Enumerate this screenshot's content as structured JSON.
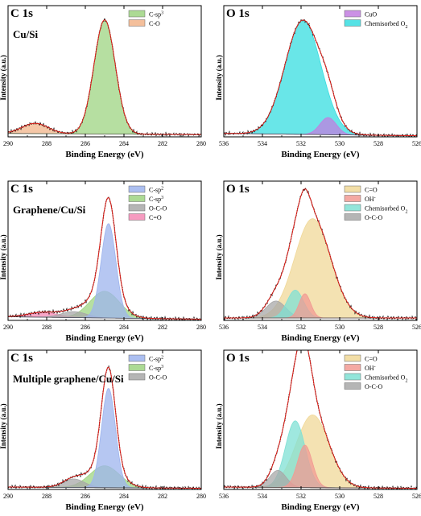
{
  "chart_data": [
    {
      "type": "area",
      "title": "C 1s",
      "subtitle": "Cu/Si",
      "xlabel": "Binding Energy (eV)",
      "ylabel": "Intensity (a.u.)",
      "xlim": [
        290,
        280
      ],
      "ylim": [
        0,
        1.15
      ],
      "xticks": [
        290,
        288,
        286,
        284,
        282,
        280
      ],
      "xtick_labels": [
        "290",
        "288",
        "286",
        "284",
        "282",
        "280"
      ],
      "legend_position": "top-right",
      "legend_labels": [
        "C-sp",
        "C-O"
      ],
      "legend_sups": [
        "3",
        ""
      ],
      "baseline": [
        [
          290,
          0.03
        ],
        [
          280,
          0.02
        ]
      ],
      "peaks": [
        {
          "name": "C-sp3",
          "center": 285.0,
          "height": 1.0,
          "fwhm": 1.3,
          "color": "#9ed481"
        },
        {
          "name": "C-O",
          "center": 288.6,
          "height": 0.09,
          "fwhm": 1.6,
          "color": "#f2b48a"
        }
      ]
    },
    {
      "type": "area",
      "title": "O 1s",
      "subtitle": "",
      "xlabel": "Binding Energy (eV)",
      "ylabel": "Intensity (a.u.)",
      "xlim": [
        536,
        526
      ],
      "ylim": [
        0,
        1.15
      ],
      "xticks": [
        536,
        534,
        532,
        530,
        528,
        526
      ],
      "xtick_labels": [
        "536",
        "534",
        "532",
        "530",
        "528",
        "526"
      ],
      "legend_position": "top-right",
      "legend_labels": [
        "CuO",
        "Chemisorbed O"
      ],
      "legend_sups": [
        "",
        ""
      ],
      "legend_subs": [
        "",
        "2"
      ],
      "baseline": [
        [
          536,
          0.03
        ],
        [
          526,
          0.01
        ]
      ],
      "peaks": [
        {
          "name": "CuO",
          "center": 530.6,
          "height": 0.15,
          "fwhm": 1.0,
          "color": "#c27de0"
        },
        {
          "name": "Chemisorbed O2",
          "center": 531.9,
          "height": 1.0,
          "fwhm": 2.2,
          "color": "#37dde0"
        }
      ]
    },
    {
      "type": "area",
      "title": "C 1s",
      "subtitle": "Graphene/Cu/Si",
      "xlabel": "Binding Energy (eV)",
      "ylabel": "Intensity (a.u.)",
      "xlim": [
        290,
        280
      ],
      "ylim": [
        0,
        1.15
      ],
      "xticks": [
        290,
        288,
        286,
        284,
        282,
        280
      ],
      "xtick_labels": [
        "290",
        "288",
        "286",
        "284",
        "282",
        "280"
      ],
      "legend_position": "top-right",
      "legend_labels": [
        "C-sp",
        "C-sp",
        "O-C-O",
        "C=O"
      ],
      "legend_sups": [
        "2",
        "3",
        "",
        ""
      ],
      "baseline": [
        [
          290,
          0.03
        ],
        [
          280,
          0.01
        ]
      ],
      "peaks": [
        {
          "name": "C-sp2",
          "center": 284.8,
          "height": 0.78,
          "fwhm": 0.9,
          "color": "#9db4ee"
        },
        {
          "name": "C-sp3",
          "center": 285.0,
          "height": 0.22,
          "fwhm": 1.8,
          "color": "#9ed481"
        },
        {
          "name": "O-C-O",
          "center": 286.6,
          "height": 0.05,
          "fwhm": 1.5,
          "color": "#a8a8a8"
        },
        {
          "name": "C=O",
          "center": 288.2,
          "height": 0.04,
          "fwhm": 1.8,
          "color": "#f48ab5"
        }
      ]
    },
    {
      "type": "area",
      "title": "O 1s",
      "subtitle": "",
      "xlabel": "Binding Energy (eV)",
      "ylabel": "Intensity (a.u.)",
      "xlim": [
        536,
        526
      ],
      "ylim": [
        0,
        1.15
      ],
      "xticks": [
        536,
        534,
        532,
        530,
        528,
        526
      ],
      "xtick_labels": [
        "536",
        "534",
        "532",
        "530",
        "528",
        "526"
      ],
      "legend_position": "top-right",
      "legend_labels": [
        "C=O",
        "OH",
        "Chemisorbed O",
        "O-C-O"
      ],
      "legend_sups": [
        "",
        "-",
        "",
        ""
      ],
      "legend_subs": [
        "",
        "",
        "2",
        ""
      ],
      "baseline": [
        [
          536,
          0.02
        ],
        [
          526,
          0.02
        ]
      ],
      "peaks": [
        {
          "name": "C=O",
          "center": 531.4,
          "height": 0.82,
          "fwhm": 2.2,
          "color": "#f0d898"
        },
        {
          "name": "OH-",
          "center": 531.8,
          "height": 0.2,
          "fwhm": 0.7,
          "color": "#f29a93"
        },
        {
          "name": "Chemisorbed O2",
          "center": 532.3,
          "height": 0.23,
          "fwhm": 1.0,
          "color": "#7fe0d4"
        },
        {
          "name": "O-C-O",
          "center": 533.3,
          "height": 0.14,
          "fwhm": 1.2,
          "color": "#a8a8a8"
        }
      ]
    },
    {
      "type": "area",
      "title": "C 1s",
      "subtitle": "Multiple graphene/Cu/Si",
      "xlabel": "Binding Energy (eV)",
      "ylabel": "Intensity (a.u.)",
      "xlim": [
        290,
        280
      ],
      "ylim": [
        0,
        1.15
      ],
      "xticks": [
        290,
        288,
        286,
        284,
        282,
        280
      ],
      "xtick_labels": [
        "290",
        "288",
        "286",
        "284",
        "282",
        "280"
      ],
      "legend_position": "top-right",
      "legend_labels": [
        "C-sp",
        "C-sp",
        "O-C-O"
      ],
      "legend_sups": [
        "2",
        "3",
        ""
      ],
      "baseline": [
        [
          290,
          0.02
        ],
        [
          280,
          0.01
        ]
      ],
      "peaks": [
        {
          "name": "C-sp2",
          "center": 284.8,
          "height": 0.82,
          "fwhm": 0.85,
          "color": "#9db4ee"
        },
        {
          "name": "C-sp3",
          "center": 285.0,
          "height": 0.18,
          "fwhm": 1.8,
          "color": "#9ed481"
        },
        {
          "name": "O-C-O",
          "center": 286.6,
          "height": 0.07,
          "fwhm": 1.3,
          "color": "#a8a8a8"
        }
      ]
    },
    {
      "type": "area",
      "title": "O 1s",
      "subtitle": "",
      "xlabel": "Binding Energy (eV)",
      "ylabel": "Intensity (a.u.)",
      "xlim": [
        536,
        526
      ],
      "ylim": [
        0,
        1.15
      ],
      "xticks": [
        536,
        534,
        532,
        530,
        528,
        526
      ],
      "xtick_labels": [
        "536",
        "534",
        "532",
        "530",
        "528",
        "526"
      ],
      "legend_position": "top-right",
      "legend_labels": [
        "C=O",
        "OH",
        "Chemisorbed O",
        "O-C-O"
      ],
      "legend_sups": [
        "",
        "-",
        "",
        ""
      ],
      "legend_subs": [
        "",
        "",
        "2",
        ""
      ],
      "baseline": [
        [
          536,
          0.02
        ],
        [
          526,
          0.01
        ]
      ],
      "peaks": [
        {
          "name": "C=O",
          "center": 531.4,
          "height": 0.6,
          "fwhm": 2.0,
          "color": "#f0d898"
        },
        {
          "name": "OH-",
          "center": 531.8,
          "height": 0.35,
          "fwhm": 0.9,
          "color": "#f29a93"
        },
        {
          "name": "Chemisorbed O2",
          "center": 532.3,
          "height": 0.55,
          "fwhm": 1.2,
          "color": "#7fe0d4"
        },
        {
          "name": "O-C-O",
          "center": 533.2,
          "height": 0.14,
          "fwhm": 1.0,
          "color": "#a8a8a8"
        }
      ]
    }
  ]
}
